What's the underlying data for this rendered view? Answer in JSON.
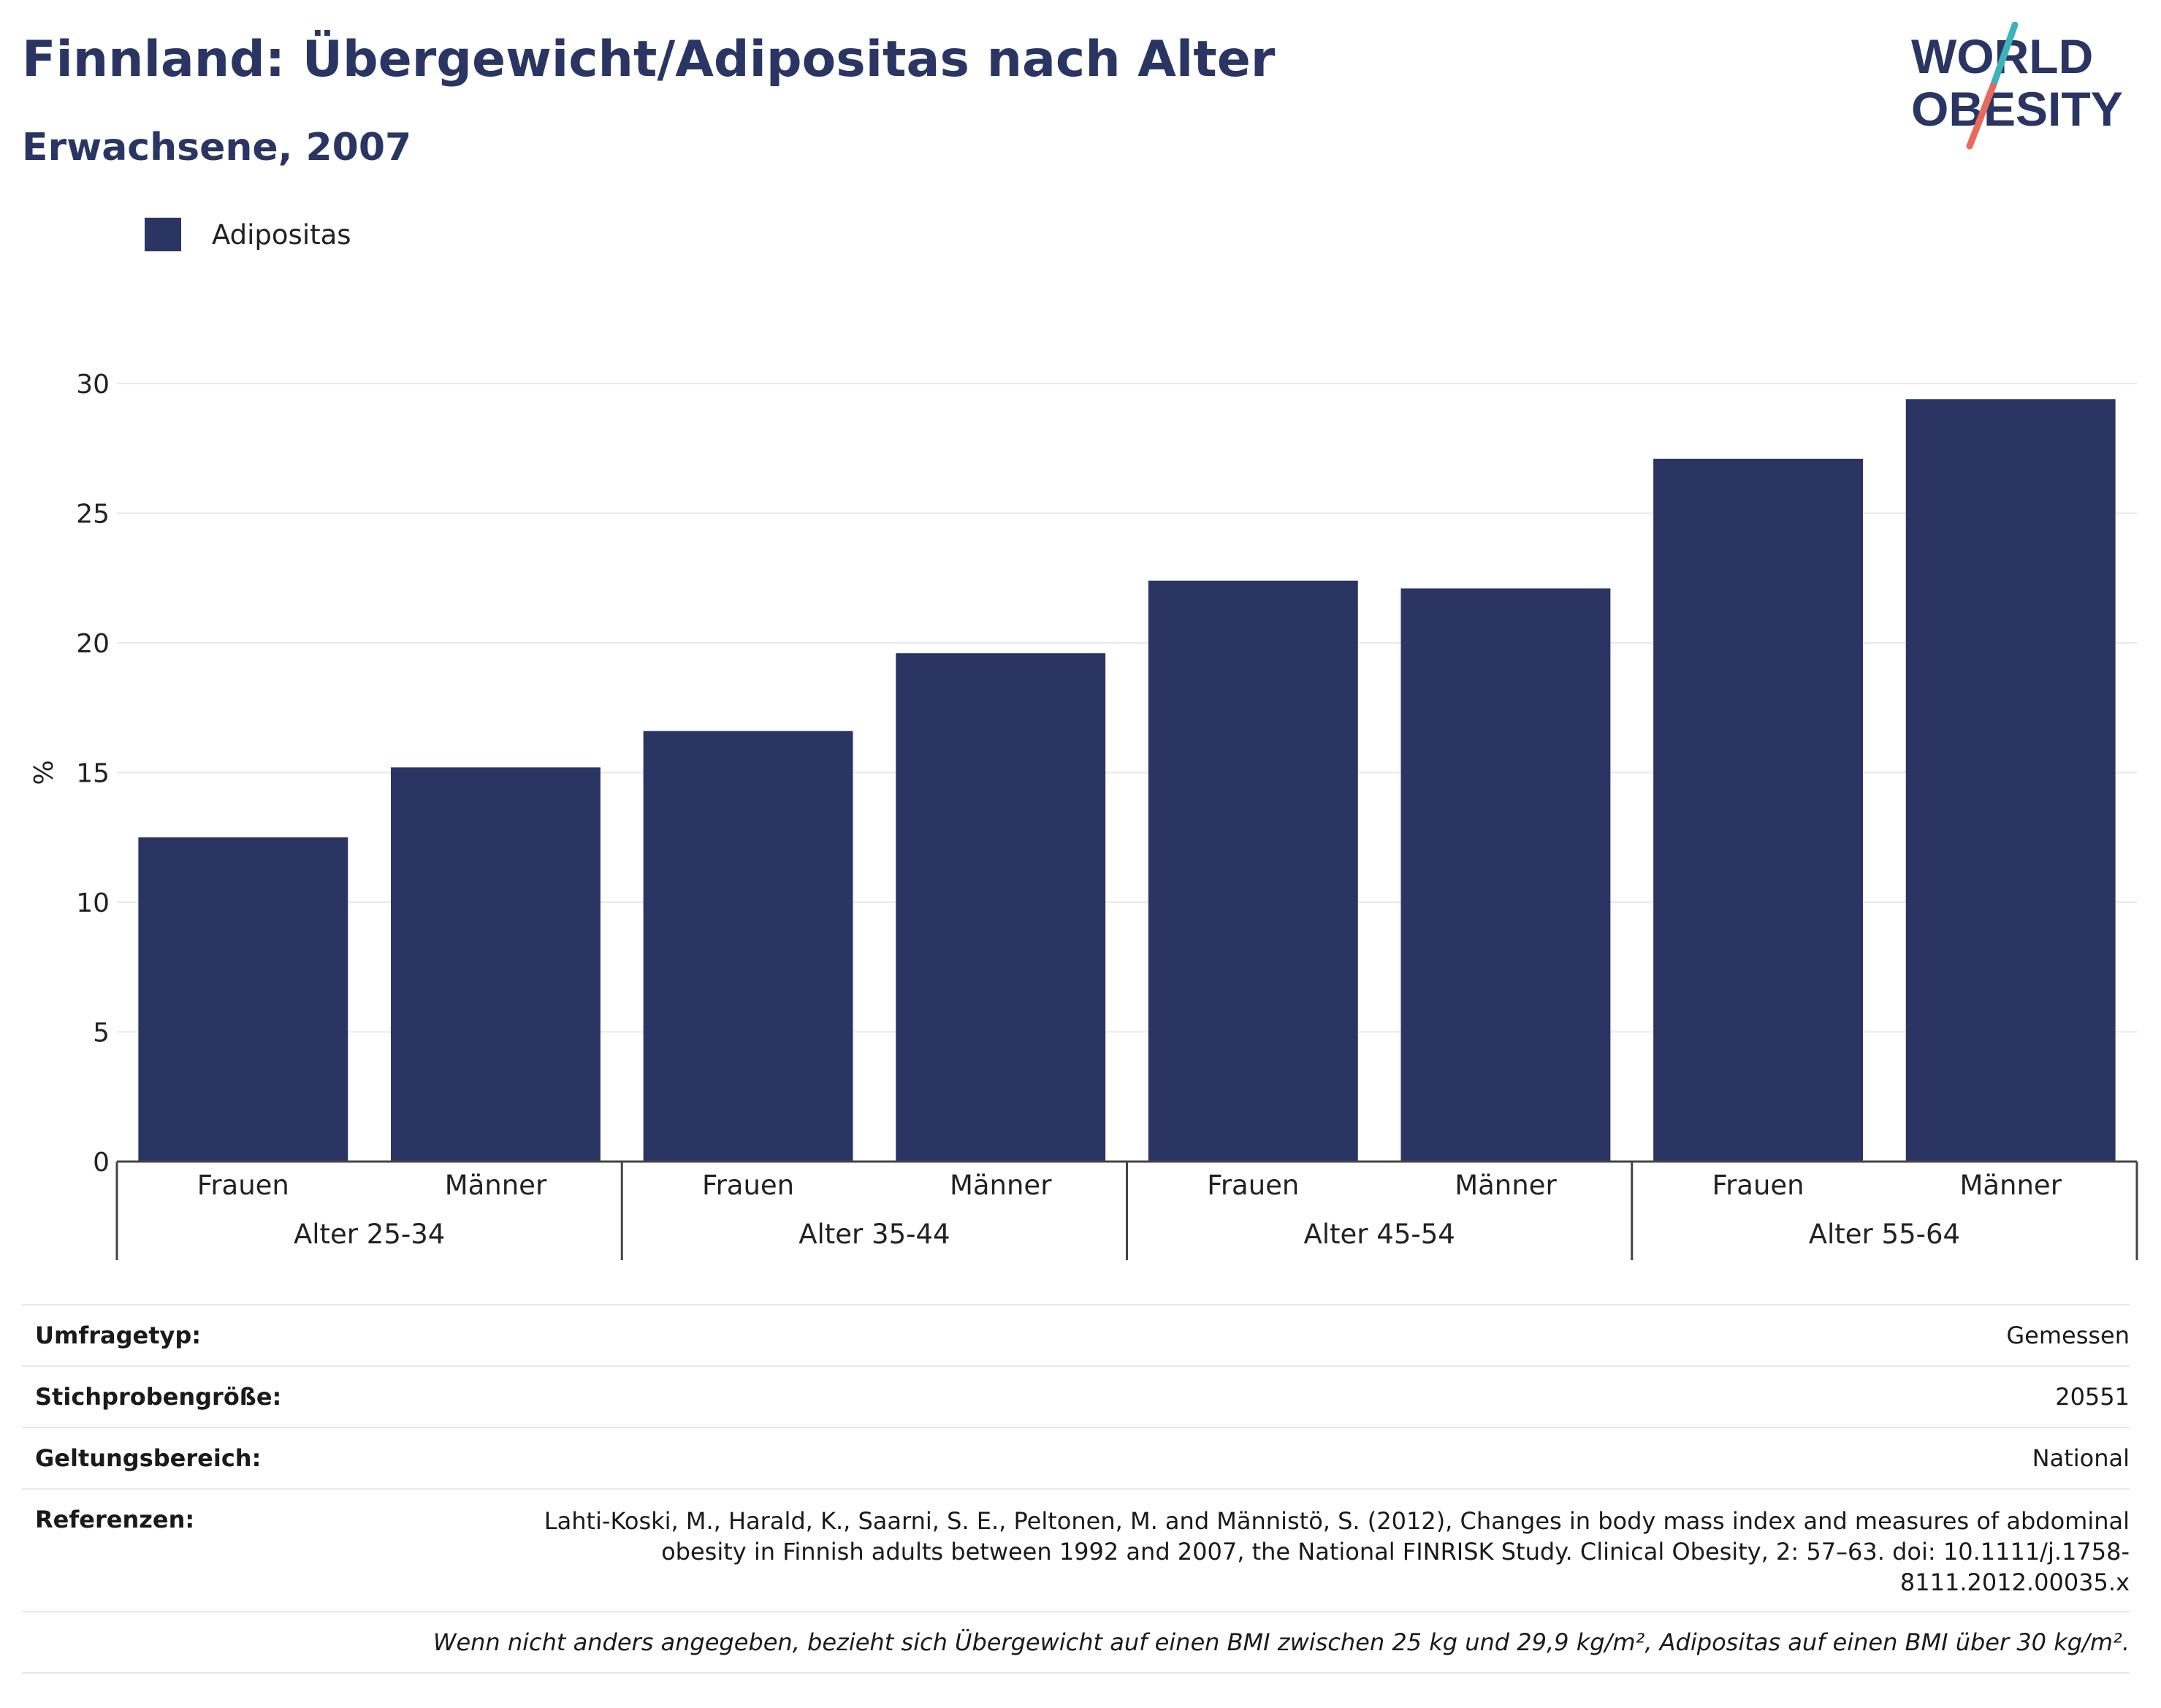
{
  "header": {
    "title": "Finnland: Übergewicht/Adipositas nach Alter",
    "subtitle": "Erwachsene, 2007"
  },
  "logo": {
    "line1": "WORLD",
    "line2": "OBESITY"
  },
  "legend": {
    "label": "Adipositas",
    "color": "#2a3563"
  },
  "chart_data": {
    "type": "bar",
    "ylabel": "%",
    "ylim": [
      0,
      30
    ],
    "yticks": [
      0,
      5,
      10,
      15,
      20,
      25,
      30
    ],
    "grid": true,
    "legend_position": "top-left",
    "bar_color": "#2a3563",
    "groups": [
      {
        "label": "Alter 25-34",
        "categories": [
          "Frauen",
          "Männer"
        ],
        "values": [
          12.5,
          15.2
        ]
      },
      {
        "label": "Alter 35-44",
        "categories": [
          "Frauen",
          "Männer"
        ],
        "values": [
          16.6,
          19.6
        ]
      },
      {
        "label": "Alter 45-54",
        "categories": [
          "Frauen",
          "Männer"
        ],
        "values": [
          22.4,
          22.1
        ]
      },
      {
        "label": "Alter 55-64",
        "categories": [
          "Frauen",
          "Männer"
        ],
        "values": [
          27.1,
          29.4
        ]
      }
    ],
    "series": [
      {
        "name": "Adipositas",
        "values": [
          12.5,
          15.2,
          16.6,
          19.6,
          22.4,
          22.1,
          27.1,
          29.4
        ]
      }
    ]
  },
  "meta": {
    "survey_type_key": "Umfragetyp:",
    "survey_type_val": "Gemessen",
    "sample_size_key": "Stichprobengröße:",
    "sample_size_val": "20551",
    "scope_key": "Geltungsbereich:",
    "scope_val": "National",
    "references_key": "Referenzen:",
    "references_val": "Lahti-Koski, M., Harald, K., Saarni, S. E., Peltonen, M. and Männistö, S. (2012), Changes in body mass index and measures of abdominal obesity in Finnish adults between 1992 and 2007, the National FINRISK Study. Clinical Obesity, 2: 57–63. doi: 10.1111/j.1758-8111.2012.00035.x",
    "note": "Wenn nicht anders angegeben, bezieht sich Übergewicht auf einen BMI zwischen 25 kg und 29,9 kg/m², Adipositas auf einen BMI über 30 kg/m²."
  }
}
